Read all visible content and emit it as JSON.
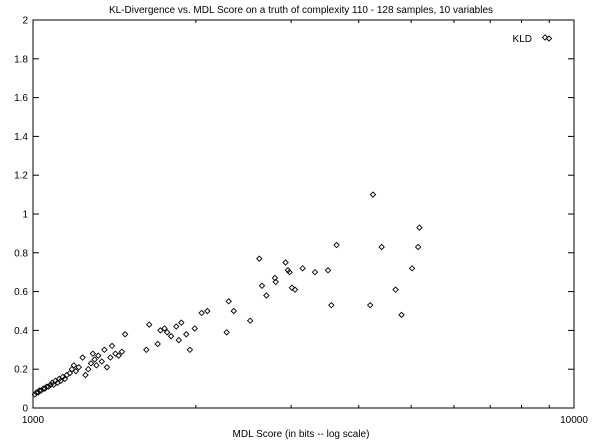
{
  "chart_data": {
    "type": "scatter",
    "title": "KL-Divergence vs. MDL Score on a truth of complexity 110 - 128 samples, 10 variables",
    "xlabel": "MDL Score (in bits -- log scale)",
    "ylabel": "",
    "x_scale": "log",
    "xlim": [
      1000,
      10000
    ],
    "ylim": [
      0,
      2
    ],
    "x_ticks": [
      {
        "value": 1000,
        "label": "1000"
      },
      {
        "value": 10000,
        "label": "10000"
      }
    ],
    "x_minor_ticks": [
      2000,
      3000,
      4000,
      5000,
      6000,
      7000,
      8000,
      9000
    ],
    "y_ticks": [
      {
        "value": 0,
        "label": "0"
      },
      {
        "value": 0.2,
        "label": "0.2"
      },
      {
        "value": 0.4,
        "label": "0.4"
      },
      {
        "value": 0.6,
        "label": "0.6"
      },
      {
        "value": 0.8,
        "label": "0.8"
      },
      {
        "value": 1.0,
        "label": "1"
      },
      {
        "value": 1.2,
        "label": "1.2"
      },
      {
        "value": 1.4,
        "label": "1.4"
      },
      {
        "value": 1.6,
        "label": "1.6"
      },
      {
        "value": 1.8,
        "label": "1.8"
      },
      {
        "value": 2.0,
        "label": "2"
      }
    ],
    "grid": false,
    "legend": {
      "position": "top-right"
    },
    "series": [
      {
        "name": "KLD",
        "marker": "diamond",
        "points": [
          [
            1008,
            0.07
          ],
          [
            1015,
            0.08
          ],
          [
            1022,
            0.08
          ],
          [
            1028,
            0.09
          ],
          [
            1035,
            0.09
          ],
          [
            1045,
            0.1
          ],
          [
            1052,
            0.1
          ],
          [
            1060,
            0.11
          ],
          [
            1068,
            0.11
          ],
          [
            1078,
            0.12
          ],
          [
            1085,
            0.13
          ],
          [
            1092,
            0.12
          ],
          [
            1100,
            0.14
          ],
          [
            1110,
            0.13
          ],
          [
            1118,
            0.15
          ],
          [
            1125,
            0.14
          ],
          [
            1135,
            0.16
          ],
          [
            1145,
            0.15
          ],
          [
            1155,
            0.17
          ],
          [
            1170,
            0.18
          ],
          [
            1180,
            0.2
          ],
          [
            1190,
            0.22
          ],
          [
            1200,
            0.19
          ],
          [
            1215,
            0.21
          ],
          [
            1235,
            0.26
          ],
          [
            1250,
            0.17
          ],
          [
            1265,
            0.2
          ],
          [
            1280,
            0.23
          ],
          [
            1290,
            0.28
          ],
          [
            1300,
            0.25
          ],
          [
            1310,
            0.22
          ],
          [
            1320,
            0.27
          ],
          [
            1340,
            0.24
          ],
          [
            1355,
            0.3
          ],
          [
            1370,
            0.21
          ],
          [
            1390,
            0.26
          ],
          [
            1400,
            0.32
          ],
          [
            1420,
            0.28
          ],
          [
            1440,
            0.27
          ],
          [
            1460,
            0.29
          ],
          [
            1480,
            0.38
          ],
          [
            1620,
            0.3
          ],
          [
            1640,
            0.43
          ],
          [
            1700,
            0.33
          ],
          [
            1720,
            0.4
          ],
          [
            1750,
            0.41
          ],
          [
            1770,
            0.39
          ],
          [
            1800,
            0.37
          ],
          [
            1840,
            0.42
          ],
          [
            1860,
            0.35
          ],
          [
            1880,
            0.44
          ],
          [
            1920,
            0.38
          ],
          [
            1950,
            0.3
          ],
          [
            1990,
            0.41
          ],
          [
            2050,
            0.49
          ],
          [
            2100,
            0.5
          ],
          [
            2280,
            0.39
          ],
          [
            2300,
            0.55
          ],
          [
            2350,
            0.5
          ],
          [
            2520,
            0.45
          ],
          [
            2620,
            0.77
          ],
          [
            2650,
            0.63
          ],
          [
            2700,
            0.58
          ],
          [
            2800,
            0.67
          ],
          [
            2810,
            0.65
          ],
          [
            2930,
            0.75
          ],
          [
            2960,
            0.71
          ],
          [
            2980,
            0.7
          ],
          [
            3010,
            0.62
          ],
          [
            3050,
            0.61
          ],
          [
            3150,
            0.72
          ],
          [
            3320,
            0.7
          ],
          [
            3510,
            0.71
          ],
          [
            3560,
            0.53
          ],
          [
            3640,
            0.84
          ],
          [
            4200,
            0.53
          ],
          [
            4250,
            1.1
          ],
          [
            4410,
            0.83
          ],
          [
            4680,
            0.61
          ],
          [
            4800,
            0.48
          ],
          [
            5020,
            0.72
          ],
          [
            5150,
            0.83
          ],
          [
            5180,
            0.93
          ],
          [
            8840,
            1.91
          ]
        ]
      }
    ]
  },
  "colors": {
    "marker_stroke": "#000000",
    "axis": "#000000",
    "background": "#ffffff"
  }
}
